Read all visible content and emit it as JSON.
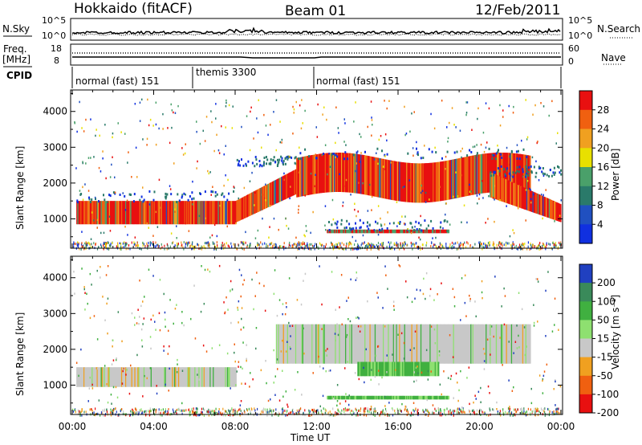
{
  "header": {
    "site": "Hokkaido (fitACF)",
    "beam": "Beam 01",
    "date": "12/Feb/2011"
  },
  "noise_panel": {
    "left_label": "N.Sky",
    "right_label": "N.Search",
    "left_ticks": [
      "10^5",
      "10^0"
    ],
    "right_ticks": [
      "10^5",
      "10^0"
    ]
  },
  "freq_panel": {
    "left_label_1": "Freq.",
    "left_label_2": "[MHz]",
    "right_label": "Nave",
    "left_ticks": [
      "18",
      "8"
    ],
    "right_ticks": [
      "60",
      "0"
    ]
  },
  "cpid": {
    "label": "CPID",
    "segments": [
      {
        "start_ut": "00:00",
        "end_ut": "06:00",
        "name": "normal (fast) 151"
      },
      {
        "start_ut": "06:00",
        "end_ut": "12:00",
        "name": "themis 3300"
      },
      {
        "start_ut": "12:00",
        "end_ut": "24:00",
        "name": "normal (fast) 151"
      }
    ]
  },
  "x_axis": {
    "label": "Time UT",
    "ticks": [
      "00:00",
      "04:00",
      "08:00",
      "12:00",
      "16:00",
      "20:00",
      "00:00"
    ]
  },
  "chart_data": [
    {
      "type": "heatmap",
      "quantity": "Power",
      "ylabel": "Slant Range [km]",
      "yticks": [
        1000,
        2000,
        3000,
        4000
      ],
      "ylim": [
        180,
        4600
      ],
      "xlim_hours": [
        0,
        24
      ],
      "colorbar": {
        "label": "Power [dB]",
        "ticks": [
          "4",
          "8",
          "12",
          "16",
          "20",
          "24",
          "28"
        ],
        "colors": [
          "#1030e0",
          "#2050c0",
          "#2a7a6a",
          "#4aa06a",
          "#e8e000",
          "#f0a020",
          "#f06010",
          "#e81010"
        ]
      },
      "features": [
        {
          "name": "main band",
          "start_hour": 0.2,
          "end_hour": 8.0,
          "range_km": [
            850,
            1500
          ]
        },
        {
          "name": "rising echo",
          "start_hour": 8.0,
          "end_hour": 11.0,
          "range_km": [
            1500,
            2500
          ]
        },
        {
          "name": "upper band",
          "start_hour": 11.0,
          "end_hour": 22.5,
          "range_km": [
            1600,
            2700
          ]
        },
        {
          "name": "descending band",
          "start_hour": 20.5,
          "end_hour": 24.0,
          "range_km": [
            900,
            2200
          ]
        },
        {
          "name": "near-range echoes",
          "start_hour": 12.5,
          "end_hour": 18.5,
          "range_km": [
            600,
            700
          ]
        }
      ]
    },
    {
      "type": "heatmap",
      "quantity": "Velocity",
      "ylabel": "Slant Range [km]",
      "yticks": [
        1000,
        2000,
        3000,
        4000
      ],
      "ylim": [
        180,
        4600
      ],
      "xlim_hours": [
        0,
        24
      ],
      "colorbar": {
        "label": "Velocity [m s⁻¹]",
        "ticks": [
          "200",
          "100",
          "50",
          "15",
          "-15",
          "-50",
          "-100",
          "-200"
        ],
        "colors": [
          "#2040c0",
          "#3a8a5a",
          "#40b040",
          "#8ee070",
          "#c8c8c8",
          "#f0a020",
          "#f06010",
          "#e81010"
        ]
      },
      "features": [
        {
          "name": "ground scatter band",
          "start_hour": 0.2,
          "end_hour": 8.0,
          "range_km": [
            950,
            1500
          ],
          "velocity": "low"
        },
        {
          "name": "ground scatter upper",
          "start_hour": 10.0,
          "end_hour": 22.5,
          "range_km": [
            1600,
            2700
          ],
          "velocity": "low"
        },
        {
          "name": "positive velocity patch",
          "start_hour": 14.0,
          "end_hour": 18.0,
          "range_km": [
            1250,
            1650
          ],
          "velocity": "positive"
        },
        {
          "name": "near-range echoes",
          "start_hour": 12.5,
          "end_hour": 18.5,
          "range_km": [
            600,
            700
          ],
          "velocity": "positive"
        }
      ]
    }
  ]
}
